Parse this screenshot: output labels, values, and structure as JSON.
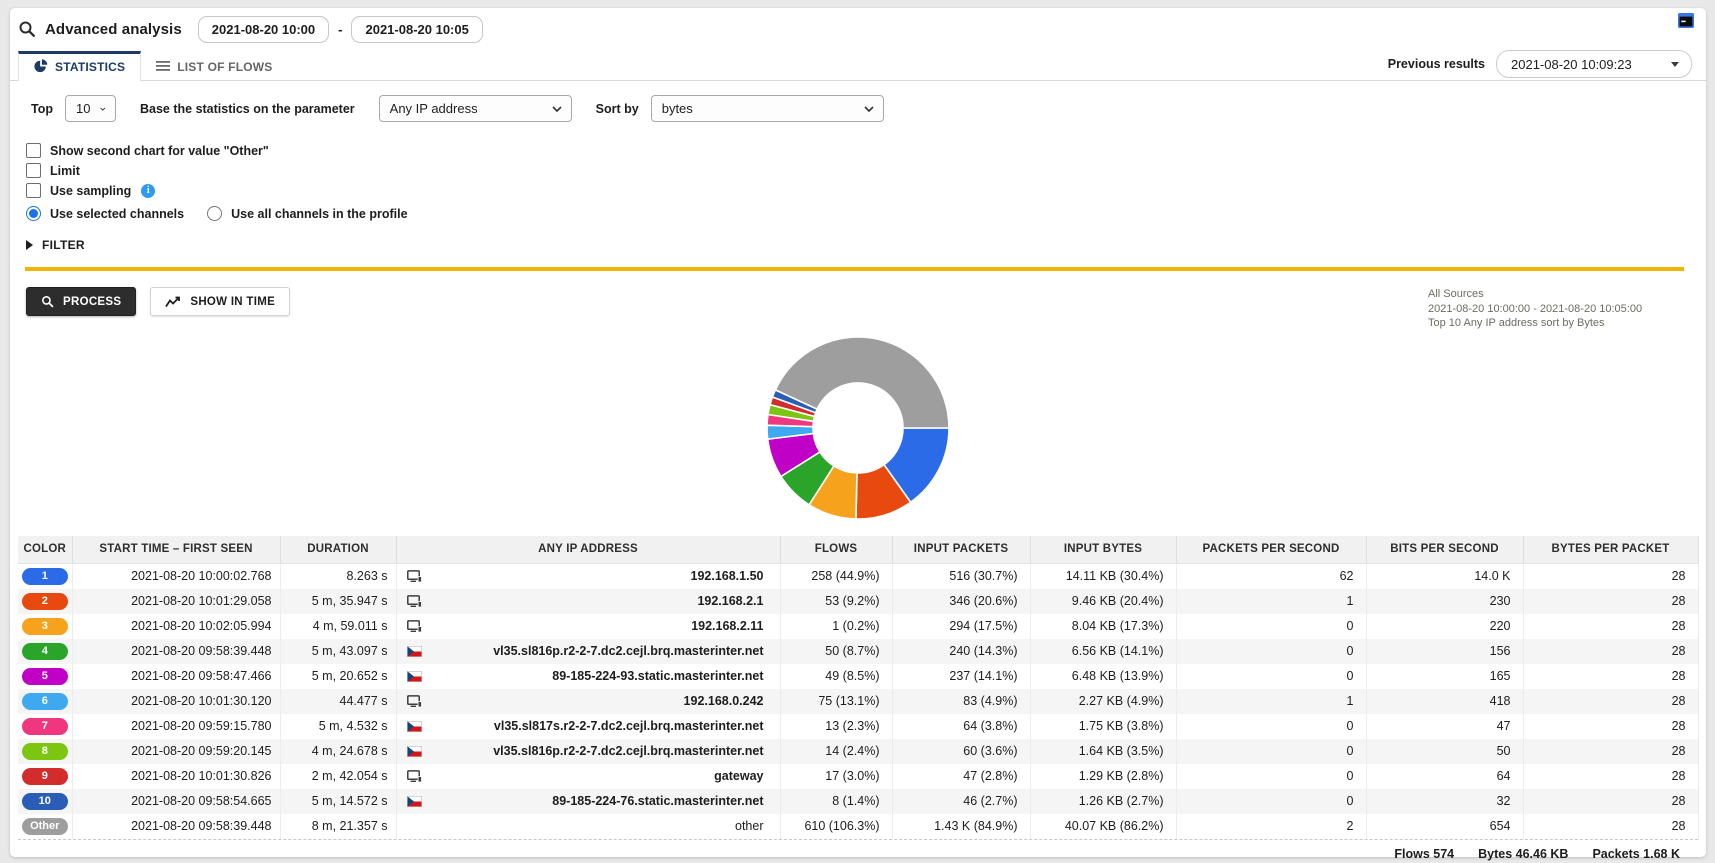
{
  "header": {
    "title": "Advanced analysis",
    "date_from": "2021-08-20 10:00",
    "date_range_separator": "-",
    "date_to": "2021-08-20 10:05"
  },
  "tabs": {
    "statistics": "STATISTICS",
    "list_of_flows": "LIST OF FLOWS",
    "previous_results_label": "Previous results",
    "previous_results_value": "2021-08-20 10:09:23"
  },
  "controls": {
    "top_label": "Top",
    "top_value": "10",
    "param_label": "Base the statistics on the parameter",
    "param_value": "Any IP address",
    "sort_label": "Sort by",
    "sort_value": "bytes",
    "checkboxes": [
      {
        "label": "Show second chart for value \"Other\"",
        "checked": false
      },
      {
        "label": "Limit",
        "checked": false
      },
      {
        "label": "Use sampling",
        "checked": false,
        "has_info_icon": true
      }
    ],
    "radios": [
      {
        "label": "Use selected channels",
        "selected": true
      },
      {
        "label": "Use all channels in the profile",
        "selected": false
      }
    ],
    "filter_label": "FILTER"
  },
  "actions": {
    "process_label": "PROCESS",
    "show_in_time_label": "SHOW IN TIME"
  },
  "summary": {
    "source": "All Sources",
    "time_range": "2021-08-20 10:00:00 - 2021-08-20 10:05:00",
    "description": "Top 10 Any IP address sort by Bytes"
  },
  "chart_data": {
    "type": "pie",
    "subtype": "donut",
    "title": "Top 10 Any IP address sort by Bytes",
    "value_unit": "KB (input bytes)",
    "start_angle": "3 o'clock, clockwise",
    "legend_position": "none",
    "slices": [
      {
        "label": "192.168.1.50",
        "value": 14.11,
        "color": "#2c6be8"
      },
      {
        "label": "192.168.2.1",
        "value": 9.46,
        "color": "#e8490f"
      },
      {
        "label": "192.168.2.11",
        "value": 8.04,
        "color": "#f7a21c"
      },
      {
        "label": "vl35.sl816p.r2-2-7.dc2.cejl.brq.masterinter.net",
        "value": 6.56,
        "color": "#2aa52a"
      },
      {
        "label": "89-185-224-93.static.masterinter.net",
        "value": 6.48,
        "color": "#c000c7"
      },
      {
        "label": "192.168.0.242",
        "value": 2.27,
        "color": "#3fa9f0"
      },
      {
        "label": "vl35.sl817s.r2-2-7.dc2.cejl.brq.masterinter.net",
        "value": 1.75,
        "color": "#f0367f"
      },
      {
        "label": "vl35.sl816p.r2-2-7.dc2.cejl.brq.masterinter.net",
        "value": 1.64,
        "color": "#7cc511"
      },
      {
        "label": "gateway",
        "value": 1.29,
        "color": "#d22c2c"
      },
      {
        "label": "89-185-224-76.static.masterinter.net",
        "value": 1.26,
        "color": "#2a5db5"
      },
      {
        "label": "other",
        "value": 40.07,
        "color": "#9e9e9e"
      }
    ]
  },
  "table": {
    "columns": [
      "COLOR",
      "START TIME – FIRST SEEN",
      "DURATION",
      "ANY IP ADDRESS",
      "FLOWS",
      "INPUT PACKETS",
      "INPUT BYTES",
      "PACKETS PER SECOND",
      "BITS PER SECOND",
      "BYTES PER PACKET"
    ],
    "rows": [
      {
        "label": "1",
        "color": "#2c6be8",
        "start_time": "2021-08-20 10:00:02.768",
        "duration": "8.263 s",
        "icon": "monitor",
        "address": "192.168.1.50",
        "address_bold": true,
        "flows": "258 (44.9%)",
        "input_packets": "516 (30.7%)",
        "input_bytes": "14.11 KB (30.4%)",
        "packets_per_second": "62",
        "bits_per_second": "14.0 K",
        "bytes_per_packet": "28"
      },
      {
        "label": "2",
        "color": "#e8490f",
        "start_time": "2021-08-20 10:01:29.058",
        "duration": "5 m, 35.947 s",
        "icon": "monitor",
        "address": "192.168.2.1",
        "address_bold": true,
        "flows": "53 (9.2%)",
        "input_packets": "346 (20.6%)",
        "input_bytes": "9.46 KB (20.4%)",
        "packets_per_second": "1",
        "bits_per_second": "230",
        "bytes_per_packet": "28"
      },
      {
        "label": "3",
        "color": "#f7a21c",
        "start_time": "2021-08-20 10:02:05.994",
        "duration": "4 m, 59.011 s",
        "icon": "monitor",
        "address": "192.168.2.11",
        "address_bold": true,
        "flows": "1 (0.2%)",
        "input_packets": "294 (17.5%)",
        "input_bytes": "8.04 KB (17.3%)",
        "packets_per_second": "0",
        "bits_per_second": "220",
        "bytes_per_packet": "28"
      },
      {
        "label": "4",
        "color": "#2aa52a",
        "start_time": "2021-08-20 09:58:39.448",
        "duration": "5 m, 43.097 s",
        "icon": "flag-cz",
        "address": "vl35.sl816p.r2-2-7.dc2.cejl.brq.masterinter.net",
        "address_bold": true,
        "flows": "50 (8.7%)",
        "input_packets": "240 (14.3%)",
        "input_bytes": "6.56 KB (14.1%)",
        "packets_per_second": "0",
        "bits_per_second": "156",
        "bytes_per_packet": "28"
      },
      {
        "label": "5",
        "color": "#c000c7",
        "start_time": "2021-08-20 09:58:47.466",
        "duration": "5 m, 20.652 s",
        "icon": "flag-cz",
        "address": "89-185-224-93.static.masterinter.net",
        "address_bold": true,
        "flows": "49 (8.5%)",
        "input_packets": "237 (14.1%)",
        "input_bytes": "6.48 KB (13.9%)",
        "packets_per_second": "0",
        "bits_per_second": "165",
        "bytes_per_packet": "28"
      },
      {
        "label": "6",
        "color": "#3fa9f0",
        "start_time": "2021-08-20 10:01:30.120",
        "duration": "44.477 s",
        "icon": "monitor",
        "address": "192.168.0.242",
        "address_bold": true,
        "flows": "75 (13.1%)",
        "input_packets": "83 (4.9%)",
        "input_bytes": "2.27 KB (4.9%)",
        "packets_per_second": "1",
        "bits_per_second": "418",
        "bytes_per_packet": "28"
      },
      {
        "label": "7",
        "color": "#f0367f",
        "start_time": "2021-08-20 09:59:15.780",
        "duration": "5 m, 4.532 s",
        "icon": "flag-cz",
        "address": "vl35.sl817s.r2-2-7.dc2.cejl.brq.masterinter.net",
        "address_bold": true,
        "flows": "13 (2.3%)",
        "input_packets": "64 (3.8%)",
        "input_bytes": "1.75 KB (3.8%)",
        "packets_per_second": "0",
        "bits_per_second": "47",
        "bytes_per_packet": "28"
      },
      {
        "label": "8",
        "color": "#7cc511",
        "start_time": "2021-08-20 09:59:20.145",
        "duration": "4 m, 24.678 s",
        "icon": "flag-cz",
        "address": "vl35.sl816p.r2-2-7.dc2.cejl.brq.masterinter.net",
        "address_bold": true,
        "flows": "14 (2.4%)",
        "input_packets": "60 (3.6%)",
        "input_bytes": "1.64 KB (3.5%)",
        "packets_per_second": "0",
        "bits_per_second": "50",
        "bytes_per_packet": "28"
      },
      {
        "label": "9",
        "color": "#d22c2c",
        "start_time": "2021-08-20 10:01:30.826",
        "duration": "2 m, 42.054 s",
        "icon": "monitor",
        "address": "gateway",
        "address_bold": true,
        "flows": "17 (3.0%)",
        "input_packets": "47 (2.8%)",
        "input_bytes": "1.29 KB (2.8%)",
        "packets_per_second": "0",
        "bits_per_second": "64",
        "bytes_per_packet": "28"
      },
      {
        "label": "10",
        "color": "#2a5db5",
        "start_time": "2021-08-20 09:58:54.665",
        "duration": "5 m, 14.572 s",
        "icon": "flag-cz",
        "address": "89-185-224-76.static.masterinter.net",
        "address_bold": true,
        "flows": "8 (1.4%)",
        "input_packets": "46 (2.7%)",
        "input_bytes": "1.26 KB (2.7%)",
        "packets_per_second": "0",
        "bits_per_second": "32",
        "bytes_per_packet": "28"
      },
      {
        "label": "Other",
        "color": "#9e9e9e",
        "start_time": "2021-08-20 09:58:39.448",
        "duration": "8 m, 21.357 s",
        "icon": "none",
        "address": "other",
        "address_bold": false,
        "flows": "610 (106.3%)",
        "input_packets": "1.43 K (84.9%)",
        "input_bytes": "40.07 KB (86.2%)",
        "packets_per_second": "2",
        "bits_per_second": "654",
        "bytes_per_packet": "28"
      }
    ],
    "totals": [
      "Flows 574",
      "Bytes 46.46 KB",
      "Packets 1.68 K"
    ]
  }
}
